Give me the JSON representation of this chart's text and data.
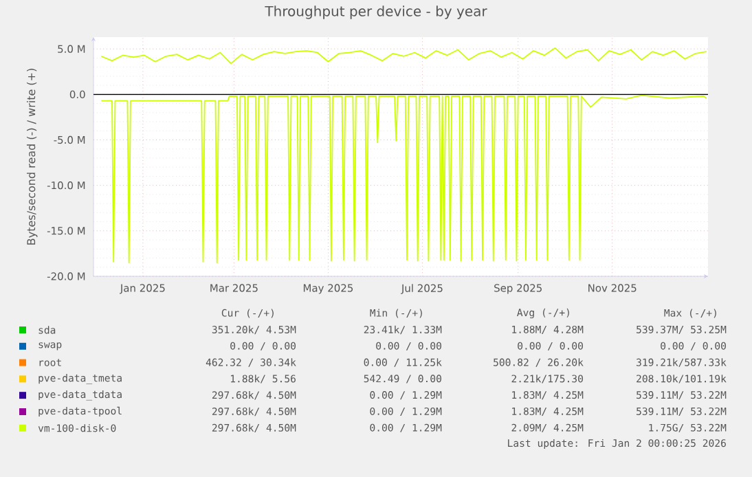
{
  "chart_data": {
    "type": "line",
    "title": "Throughput per device - by year",
    "ylabel": "Bytes/second read (-) / write (+)",
    "xlim": [
      "2024-11-30",
      "2026-01-02"
    ],
    "xticks": [
      {
        "value": "2025-01-01",
        "label": "Jan 2025"
      },
      {
        "value": "2025-03-01",
        "label": "Mar 2025"
      },
      {
        "value": "2025-05-01",
        "label": "May 2025"
      },
      {
        "value": "2025-07-01",
        "label": "Jul 2025"
      },
      {
        "value": "2025-09-01",
        "label": "Sep 2025"
      },
      {
        "value": "2025-11-01",
        "label": "Nov 2025"
      }
    ],
    "ylim": [
      -20,
      6.3
    ],
    "yticks": [
      {
        "value": -20,
        "label": "-20.0 M"
      },
      {
        "value": -15,
        "label": "-15.0 M"
      },
      {
        "value": -10,
        "label": "-10.0 M"
      },
      {
        "value": -5,
        "label": "-5.0 M"
      },
      {
        "value": 0,
        "label": "0.0"
      },
      {
        "value": 5,
        "label": "5.0 M"
      }
    ],
    "grid": true,
    "legend": "bottom",
    "marker": "none",
    "line_style": "solid",
    "ref_lines": [
      {
        "axis": "y",
        "value": 0,
        "color": "#000000"
      }
    ],
    "series": [
      {
        "name": "sda",
        "color": "#00cc00"
      },
      {
        "name": "swap",
        "color": "#0066b3"
      },
      {
        "name": "root",
        "color": "#ff8000"
      },
      {
        "name": "pve-data_tmeta",
        "color": "#ffcc00"
      },
      {
        "name": "pve-data_tdata",
        "color": "#330099"
      },
      {
        "name": "pve-data-tpool",
        "color": "#990099"
      },
      {
        "name": "vm-100-disk-0",
        "color": "#ccff00",
        "x": [
          "2024-12-05",
          "2024-12-12",
          "2024-12-19",
          "2024-12-26",
          "2025-01-02",
          "2025-01-09",
          "2025-01-16",
          "2025-01-23",
          "2025-01-30",
          "2025-02-06",
          "2025-02-13",
          "2025-02-20",
          "2025-02-27",
          "2025-03-06",
          "2025-03-13",
          "2025-03-20",
          "2025-03-27",
          "2025-04-03",
          "2025-04-10",
          "2025-04-17",
          "2025-04-24",
          "2025-05-01",
          "2025-05-08",
          "2025-05-15",
          "2025-05-22",
          "2025-05-29",
          "2025-06-05",
          "2025-06-12",
          "2025-06-19",
          "2025-06-26",
          "2025-07-03",
          "2025-07-10",
          "2025-07-17",
          "2025-07-24",
          "2025-07-31",
          "2025-08-07",
          "2025-08-14",
          "2025-08-21",
          "2025-08-28",
          "2025-09-04",
          "2025-09-11",
          "2025-09-18",
          "2025-09-25",
          "2025-10-02",
          "2025-10-09",
          "2025-10-16",
          "2025-10-23",
          "2025-10-30",
          "2025-11-06",
          "2025-11-13",
          "2025-11-20",
          "2025-11-27",
          "2025-12-04",
          "2025-12-11",
          "2025-12-18",
          "2025-12-25",
          "2026-01-01"
        ],
        "values": [
          4.2,
          3.7,
          4.3,
          4.1,
          4.3,
          3.6,
          4.2,
          4.4,
          3.8,
          4.3,
          3.9,
          4.6,
          3.4,
          4.4,
          3.8,
          4.4,
          4.7,
          4.5,
          4.7,
          4.8,
          4.6,
          3.6,
          4.5,
          4.6,
          4.8,
          4.3,
          3.7,
          4.5,
          4.2,
          4.6,
          4.0,
          4.8,
          4.3,
          4.9,
          3.8,
          4.5,
          4.8,
          4.1,
          4.6,
          3.9,
          4.8,
          4.3,
          5.1,
          4.0,
          4.7,
          4.9,
          3.7,
          4.8,
          4.4,
          4.9,
          3.8,
          4.7,
          4.3,
          4.8,
          3.9,
          4.5,
          4.7
        ]
      },
      {
        "color": "#ccff00",
        "x": [
          "2024-12-05",
          "2024-12-12",
          "2024-12-13",
          "2024-12-14",
          "2024-12-22",
          "2024-12-23",
          "2024-12-24",
          "2025-02-08",
          "2025-02-09",
          "2025-02-10",
          "2025-02-17",
          "2025-02-18",
          "2025-02-19",
          "2025-02-25",
          "2025-02-26",
          "2025-03-03",
          "2025-03-04",
          "2025-03-05",
          "2025-03-08",
          "2025-03-09",
          "2025-03-10",
          "2025-03-15",
          "2025-03-16",
          "2025-03-17",
          "2025-03-21",
          "2025-03-22",
          "2025-03-23",
          "2025-04-05",
          "2025-04-06",
          "2025-04-07",
          "2025-04-11",
          "2025-04-12",
          "2025-04-13",
          "2025-04-18",
          "2025-04-19",
          "2025-04-20",
          "2025-05-02",
          "2025-05-03",
          "2025-05-04",
          "2025-05-10",
          "2025-05-11",
          "2025-05-12",
          "2025-05-17",
          "2025-05-18",
          "2025-05-19",
          "2025-05-25",
          "2025-05-26",
          "2025-05-27",
          "2025-06-01",
          "2025-06-02",
          "2025-06-03",
          "2025-06-13",
          "2025-06-14",
          "2025-06-15",
          "2025-06-20",
          "2025-06-21",
          "2025-06-22",
          "2025-06-27",
          "2025-06-28",
          "2025-06-29",
          "2025-07-04",
          "2025-07-05",
          "2025-07-06",
          "2025-07-12",
          "2025-07-13",
          "2025-07-14",
          "2025-07-15",
          "2025-07-16",
          "2025-07-18",
          "2025-07-19",
          "2025-07-20",
          "2025-07-25",
          "2025-07-26",
          "2025-07-27",
          "2025-08-01",
          "2025-08-02",
          "2025-08-03",
          "2025-08-08",
          "2025-08-09",
          "2025-08-10",
          "2025-08-15",
          "2025-08-16",
          "2025-08-17",
          "2025-08-23",
          "2025-08-24",
          "2025-08-25",
          "2025-08-30",
          "2025-08-31",
          "2025-09-01",
          "2025-09-05",
          "2025-09-06",
          "2025-09-07",
          "2025-09-12",
          "2025-09-13",
          "2025-09-14",
          "2025-09-19",
          "2025-09-20",
          "2025-09-21",
          "2025-10-03",
          "2025-10-04",
          "2025-10-05",
          "2025-10-10",
          "2025-10-11",
          "2025-10-12",
          "2025-10-18",
          "2025-10-25",
          "2025-11-10",
          "2025-11-20",
          "2025-12-08",
          "2025-12-30",
          "2026-01-01"
        ],
        "values": [
          -0.7,
          -0.7,
          -18.4,
          -0.7,
          -0.7,
          -18.5,
          -0.7,
          -0.7,
          -18.4,
          -0.7,
          -0.7,
          -18.5,
          -0.7,
          -0.7,
          -0.2,
          -0.2,
          -18.2,
          -0.2,
          -0.2,
          -18.2,
          -0.2,
          -0.2,
          -18.2,
          -0.2,
          -0.2,
          -18.2,
          -0.2,
          -0.2,
          -18.2,
          -0.2,
          -0.2,
          -18.2,
          -0.2,
          -0.2,
          -18.2,
          -0.2,
          -0.2,
          -18.3,
          -0.2,
          -0.2,
          -18.2,
          -0.2,
          -0.2,
          -18.3,
          -0.2,
          -0.2,
          -18.2,
          -0.2,
          -0.2,
          -5.3,
          -0.2,
          -0.2,
          -5.1,
          -0.2,
          -0.2,
          -18.2,
          -0.2,
          -0.2,
          -18.3,
          -0.2,
          -0.2,
          -18.3,
          -0.2,
          -0.2,
          -18.2,
          -0.2,
          -18.2,
          -0.2,
          -0.2,
          -18.2,
          -0.2,
          -0.2,
          -18.3,
          -0.2,
          -0.2,
          -18.2,
          -0.2,
          -0.2,
          -18.2,
          -0.2,
          -0.2,
          -18.3,
          -0.2,
          -0.2,
          -18.2,
          -0.2,
          -0.2,
          -18.3,
          -0.2,
          -0.2,
          -18.2,
          -0.2,
          -0.2,
          -18.2,
          -0.2,
          -0.2,
          -18.2,
          -0.2,
          -0.2,
          -18.2,
          -0.2,
          -0.2,
          -18.2,
          -0.2,
          -1.4,
          -0.3,
          -0.5,
          -0.1,
          -0.4,
          -0.2,
          -0.4
        ]
      }
    ],
    "annotations": [
      "Cur (-/+)",
      "Min (-/+)",
      "Avg (-/+)",
      "Max (-/+)",
      "351.20k/  4.53M",
      "23.41k/  1.33M",
      "1.88M/  4.28M",
      "539.37M/ 53.25M",
      "0.00 /  0.00",
      "0.00 /  0.00",
      "0.00 /  0.00",
      "0.00 /  0.00",
      "462.32 / 30.34k",
      "0.00 / 11.25k",
      "500.82 / 26.20k",
      "319.21k/587.33k",
      "1.88k/  5.56",
      "542.49 /  0.00",
      "2.21k/175.30",
      "208.10k/101.19k",
      "297.68k/  4.50M",
      "0.00 /  1.29M",
      "1.83M/  4.25M",
      "539.11M/ 53.22M",
      "297.68k/  4.50M",
      "0.00 /  1.29M",
      "1.83M/  4.25M",
      "539.11M/ 53.22M",
      "297.68k/  4.50M",
      "0.00 /  1.29M",
      "2.09M/  4.25M",
      "1.75G/ 53.22M",
      "Last update: Fri Jan  2 00:00:25 2026"
    ]
  }
}
